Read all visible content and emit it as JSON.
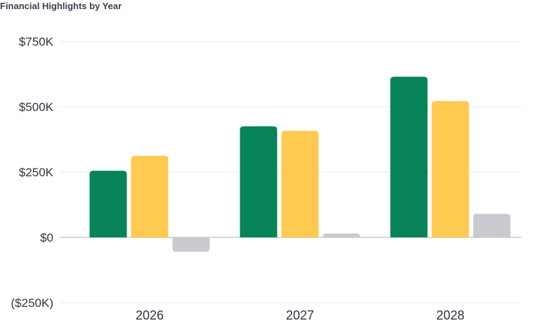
{
  "title": "Financial Highlights by Year",
  "chart_data": {
    "type": "bar",
    "title": "Financial Highlights by Year",
    "xlabel": "",
    "ylabel": "",
    "categories": [
      "2026",
      "2027",
      "2028"
    ],
    "series": [
      {
        "values": [
          255000,
          425000,
          615000
        ],
        "color": "#078457"
      },
      {
        "values": [
          312000,
          408000,
          522000
        ],
        "color": "#FFCA4F"
      },
      {
        "values": [
          -55000,
          15000,
          90000
        ],
        "color": "#C8CACF"
      }
    ],
    "ylim": [
      -250000,
      750000
    ],
    "yticks": [
      -250000,
      0,
      250000,
      500000,
      750000
    ],
    "ytick_labels": [
      "($250K)",
      "$0",
      "$250K",
      "$500K",
      "$750K"
    ],
    "grid": true,
    "legend": "none"
  }
}
